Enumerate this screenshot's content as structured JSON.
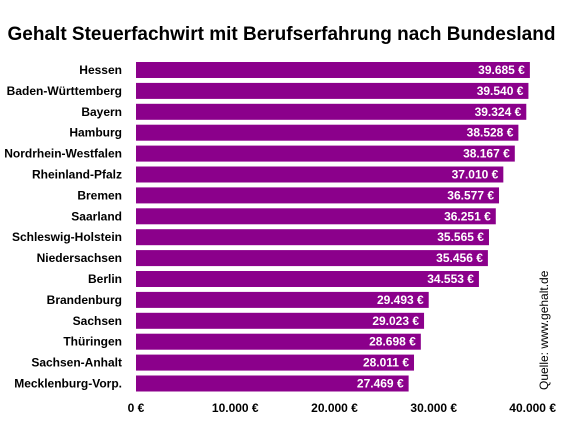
{
  "chart_data": {
    "type": "bar",
    "orientation": "horizontal",
    "title": "Gehalt Steuerfachwirt mit Berufserfahrung nach Bundesland",
    "categories": [
      "Hessen",
      "Baden-Württemberg",
      "Bayern",
      "Hamburg",
      "Nordrhein-Westfalen",
      "Rheinland-Pfalz",
      "Bremen",
      "Saarland",
      "Schleswig-Holstein",
      "Niedersachsen",
      "Berlin",
      "Brandenburg",
      "Sachsen",
      "Thüringen",
      "Sachsen-Anhalt",
      "Mecklenburg-Vorp."
    ],
    "values": [
      39685,
      39540,
      39324,
      38528,
      38167,
      37010,
      36577,
      36251,
      35565,
      35456,
      34553,
      29493,
      29023,
      28698,
      28011,
      27469
    ],
    "value_labels": [
      "39.685 €",
      "39.540 €",
      "39.324 €",
      "38.528 €",
      "38.167 €",
      "37.010 €",
      "36.577 €",
      "36.251 €",
      "35.565 €",
      "35.456 €",
      "34.553 €",
      "29.493 €",
      "29.023 €",
      "28.698 €",
      "28.011 €",
      "27.469 €"
    ],
    "xlim": [
      0,
      40000
    ],
    "x_ticks": [
      0,
      10000,
      20000,
      30000,
      40000
    ],
    "x_tick_labels": [
      "0 €",
      "10.000 €",
      "20.000 €",
      "30.000 €",
      "40.000 €"
    ],
    "grid": false,
    "bar_color": "#8B008B",
    "source": "Quelle: www.gehalt.de"
  }
}
